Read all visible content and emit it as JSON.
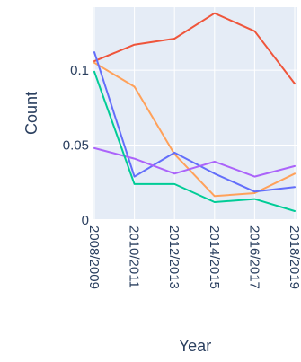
{
  "chart_data": {
    "type": "line",
    "xlabel": "Year",
    "ylabel": "Count",
    "x": [
      "2008/2009",
      "2010/2011",
      "2012/2013",
      "2014/2015",
      "2016/2017",
      "2018/2019"
    ],
    "ylim": [
      0,
      0.142
    ],
    "yticks": [
      {
        "value": 0,
        "label": "0"
      },
      {
        "value": 0.05,
        "label": "0.05"
      },
      {
        "value": 0.1,
        "label": "0.1"
      }
    ],
    "grid": true,
    "plot_background": "#e5ecf6",
    "series": [
      {
        "color": "#EF553B",
        "values": [
          0.106,
          0.117,
          0.121,
          0.138,
          0.126,
          0.091
        ]
      },
      {
        "color": "#FFA15A",
        "values": [
          0.105,
          0.089,
          0.044,
          0.016,
          0.018,
          0.031
        ]
      },
      {
        "color": "#636EFA",
        "values": [
          0.112,
          0.029,
          0.045,
          0.031,
          0.019,
          0.022
        ]
      },
      {
        "color": "#AB63FA",
        "values": [
          0.048,
          0.041,
          0.031,
          0.039,
          0.029,
          0.036
        ]
      },
      {
        "color": "#00CC96",
        "values": [
          0.099,
          0.024,
          0.024,
          0.012,
          0.014,
          0.006
        ]
      }
    ]
  }
}
